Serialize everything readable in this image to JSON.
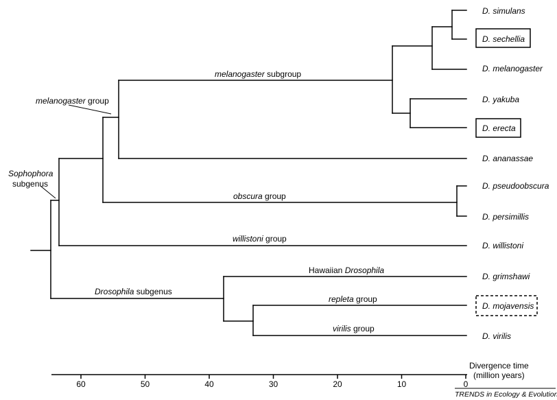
{
  "taxa": [
    {
      "name": "D. simulans",
      "boxed": null
    },
    {
      "name": "D. sechellia",
      "boxed": "solid"
    },
    {
      "name": "D. melanogaster",
      "boxed": null
    },
    {
      "name": "D. yakuba",
      "boxed": null
    },
    {
      "name": "D. erecta",
      "boxed": "solid"
    },
    {
      "name": "D. ananassae",
      "boxed": null
    },
    {
      "name": "D. pseudoobscura",
      "boxed": null
    },
    {
      "name": "D. persimillis",
      "boxed": null
    },
    {
      "name": "D. willistoni",
      "boxed": null
    },
    {
      "name": "D. grimshawi",
      "boxed": null
    },
    {
      "name": "D. mojavensis",
      "boxed": "dashed"
    },
    {
      "name": "D. virilis",
      "boxed": null
    }
  ],
  "clade_labels": {
    "melanogaster_subgroup": {
      "italic": "melanogaster",
      "plain": " subgroup"
    },
    "melanogaster_group": {
      "italic": "melanogaster",
      "plain": " group"
    },
    "obscura_group": {
      "italic": "obscura",
      "plain": " group"
    },
    "willistoni_group": {
      "italic": "willistoni",
      "plain": " group"
    },
    "sophophora_subgenus": {
      "italic": "Sophophora",
      "plain": "subgenus"
    },
    "drosophila_subgenus": {
      "italic": "Drosophila",
      "plain": " subgenus"
    },
    "hawaiian_drosophila": {
      "plain": "Hawaiian ",
      "italic": "Drosophila"
    },
    "repleta_group": {
      "italic": "repleta",
      "plain": " group"
    },
    "virilis_group": {
      "italic": "virilis",
      "plain": " group"
    }
  },
  "axis": {
    "title_line1": "Divergence time",
    "title_line2": "(million years)",
    "ticks": [
      60,
      50,
      40,
      30,
      20,
      10,
      0
    ]
  },
  "credit": "TRENDS in Ecology & Evolution"
}
